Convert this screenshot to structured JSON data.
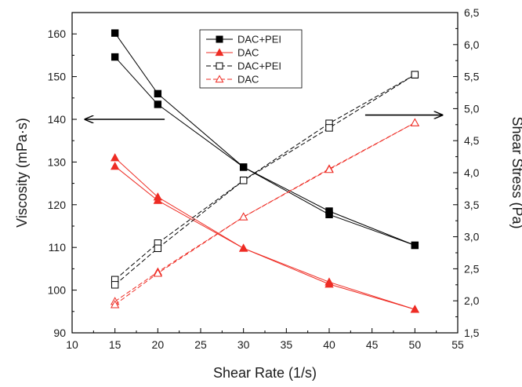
{
  "chart_data": {
    "type": "line",
    "title": "",
    "xlabel": "Shear Rate (1/s)",
    "ylabel_left": "Viscosity (mPa·s)",
    "ylabel_right": "Shear Stress (Pa)",
    "xlim": [
      10,
      55
    ],
    "ylim_left": [
      90,
      165
    ],
    "ylim_right": [
      1.5,
      6.5
    ],
    "x_ticks": [
      "10",
      "15",
      "20",
      "25",
      "30",
      "35",
      "40",
      "45",
      "50",
      "55"
    ],
    "y_left_ticks": [
      "90",
      "100",
      "110",
      "120",
      "130",
      "140",
      "150",
      "160"
    ],
    "y_right_ticks": [
      "1,5",
      "2,0",
      "2,5",
      "3,0",
      "3,5",
      "4,0",
      "4,5",
      "5,0",
      "5,5",
      "6,0",
      "6,5"
    ],
    "grid": false,
    "legend_position": "top-center",
    "series": [
      {
        "name": "DAC+PEI",
        "axis": "left",
        "color": "#000000",
        "marker": "square-filled",
        "dashed": false,
        "x": [
          15,
          20,
          30,
          40,
          50
        ],
        "y": [
          160.2,
          146.0,
          128.8,
          117.7,
          110.5
        ]
      },
      {
        "name": "",
        "axis": "left",
        "color": "#000000",
        "marker": "square-filled",
        "dashed": false,
        "x": [
          15,
          20,
          30,
          40,
          50
        ],
        "y": [
          154.6,
          143.5,
          128.8,
          118.5,
          110.5
        ]
      },
      {
        "name": "DAC",
        "axis": "left",
        "color": "#ee2c24",
        "marker": "triangle-filled",
        "dashed": false,
        "x": [
          15,
          20,
          30,
          40,
          50
        ],
        "y": [
          131.0,
          121.8,
          109.8,
          101.9,
          95.5
        ]
      },
      {
        "name": "",
        "axis": "left",
        "color": "#ee2c24",
        "marker": "triangle-filled",
        "dashed": false,
        "x": [
          15,
          20,
          30,
          40,
          50
        ],
        "y": [
          129.0,
          121.0,
          109.8,
          101.4,
          95.5
        ]
      },
      {
        "name": "DAC+PEI",
        "axis": "right",
        "color": "#000000",
        "marker": "square-open",
        "dashed": true,
        "x": [
          15,
          20,
          30,
          40,
          50
        ],
        "y": [
          2.33,
          2.9,
          3.88,
          4.77,
          5.53
        ]
      },
      {
        "name": "",
        "axis": "right",
        "color": "#000000",
        "marker": "square-open",
        "dashed": true,
        "x": [
          15,
          20,
          30,
          40,
          50
        ],
        "y": [
          2.25,
          2.82,
          3.88,
          4.7,
          5.53
        ]
      },
      {
        "name": "DAC",
        "axis": "right",
        "color": "#ee2c24",
        "marker": "triangle-open",
        "dashed": true,
        "x": [
          15,
          20,
          30,
          40,
          50
        ],
        "y": [
          1.99,
          2.45,
          3.31,
          4.06,
          4.78
        ]
      },
      {
        "name": "",
        "axis": "right",
        "color": "#ee2c24",
        "marker": "triangle-open",
        "dashed": true,
        "x": [
          15,
          20,
          30,
          40,
          50
        ],
        "y": [
          1.94,
          2.43,
          3.31,
          4.05,
          4.78
        ]
      }
    ],
    "annotations": [
      {
        "type": "arrow",
        "direction": "left",
        "axis": "left",
        "x_from": 20.8,
        "x_to": 11.5,
        "y": 140
      },
      {
        "type": "arrow",
        "direction": "right",
        "axis": "right",
        "x_from": 44.2,
        "x_to": 53.2,
        "y": 4.9
      }
    ]
  }
}
